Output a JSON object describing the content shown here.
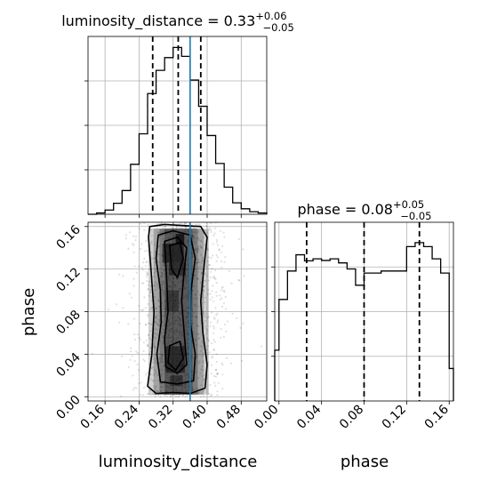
{
  "chart_data": [
    {
      "panel": "luminosity_distance marginal",
      "type": "histogram",
      "title_prefix": "luminosity_distance = 0.33",
      "title_plus": "+0.06",
      "title_minus": "−0.05",
      "xlim": [
        0.12,
        0.54
      ],
      "grid": true,
      "bin_edges": [
        0.12,
        0.14,
        0.16,
        0.18,
        0.2,
        0.22,
        0.24,
        0.26,
        0.28,
        0.3,
        0.32,
        0.34,
        0.36,
        0.38,
        0.4,
        0.42,
        0.44,
        0.46,
        0.48,
        0.5,
        0.52,
        0.54
      ],
      "counts": [
        0,
        0.3,
        1.0,
        2.6,
        5.6,
        11.8,
        19.0,
        28.5,
        34.0,
        37.0,
        39.4,
        37.3,
        31.7,
        25.5,
        18.6,
        12.0,
        6.4,
        2.7,
        1.3,
        0.6,
        0.3
      ],
      "quantile_lines": [
        0.272,
        0.332,
        0.385
      ],
      "truth": 0.36,
      "color_hist": "#000000",
      "color_truth": "#1f77b4"
    },
    {
      "panel": "phase marginal",
      "type": "histogram",
      "title_prefix": "phase = 0.08",
      "title_plus": "+0.05",
      "title_minus": "−0.05",
      "xlim": [
        -0.004,
        0.164
      ],
      "grid": true,
      "bin_edges": [
        -0.004,
        0.0,
        0.008,
        0.016,
        0.024,
        0.032,
        0.04,
        0.048,
        0.056,
        0.064,
        0.072,
        0.08,
        0.088,
        0.096,
        0.104,
        0.112,
        0.12,
        0.128,
        0.136,
        0.144,
        0.152,
        0.16,
        0.164
      ],
      "counts": [
        12.5,
        25.0,
        32.0,
        36.0,
        34.5,
        35.0,
        34.6,
        35.0,
        34.0,
        32.5,
        28.5,
        31.5,
        31.5,
        32.0,
        32.0,
        32.0,
        38.0,
        39.0,
        38.0,
        35.0,
        31.5,
        8.0
      ],
      "quantile_lines": [
        0.026,
        0.08,
        0.132
      ],
      "color_hist": "#000000"
    },
    {
      "panel": "luminosity_distance vs phase",
      "type": "contour",
      "xlabel": "luminosity_distance",
      "ylabel": "phase",
      "xlim": [
        0.12,
        0.54
      ],
      "ylim": [
        -0.004,
        0.164
      ],
      "x_ticks": [
        "0.16",
        "0.24",
        "0.32",
        "0.40",
        "0.48"
      ],
      "x_tick_values": [
        0.16,
        0.24,
        0.32,
        0.4,
        0.48
      ],
      "y_ticks": [
        "0.00",
        "0.04",
        "0.08",
        "0.12",
        "0.16"
      ],
      "y_tick_values": [
        0.0,
        0.04,
        0.08,
        0.12,
        0.16
      ],
      "truth_x": 0.36,
      "color_truth": "#1f77b4"
    }
  ],
  "phase_axis": {
    "xlabel": "phase",
    "x_ticks": [
      "0.00",
      "0.04",
      "0.08",
      "0.12",
      "0.16"
    ],
    "x_tick_values": [
      0.0,
      0.04,
      0.08,
      0.12,
      0.16
    ]
  }
}
